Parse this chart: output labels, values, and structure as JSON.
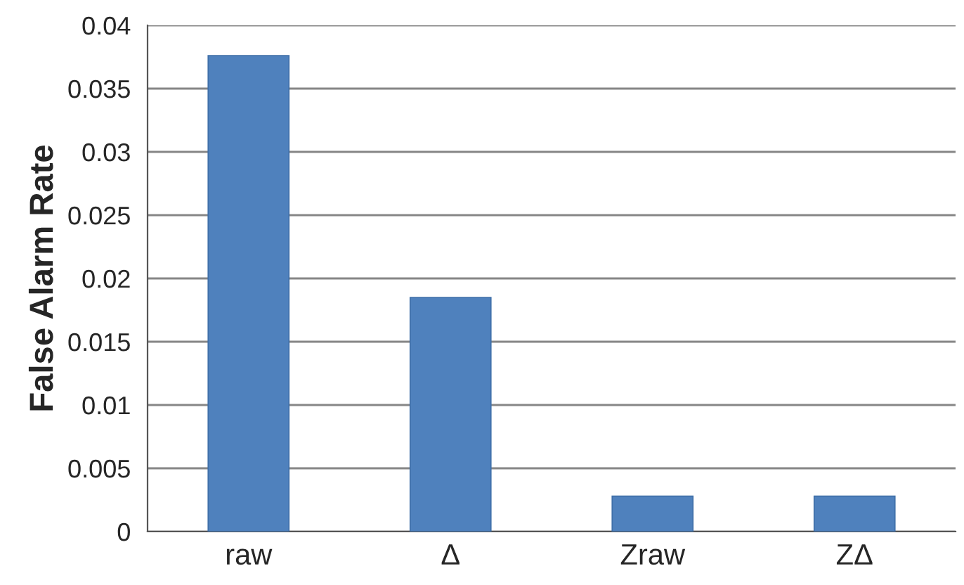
{
  "chart_data": {
    "type": "bar",
    "ylabel": "False Alarm Rate",
    "categories": [
      "raw",
      "Δ",
      "Zraw",
      "ZΔ"
    ],
    "series": [
      {
        "color": "#4f81bd",
        "values": [
          0.0376,
          0.0185,
          0.0028,
          0.0028
        ]
      }
    ],
    "ylim": [
      0,
      0.04
    ],
    "yticks": [
      0,
      0.005,
      0.01,
      0.015,
      0.02,
      0.025,
      0.03,
      0.035,
      0.04
    ],
    "grid": "y",
    "legend": false
  }
}
